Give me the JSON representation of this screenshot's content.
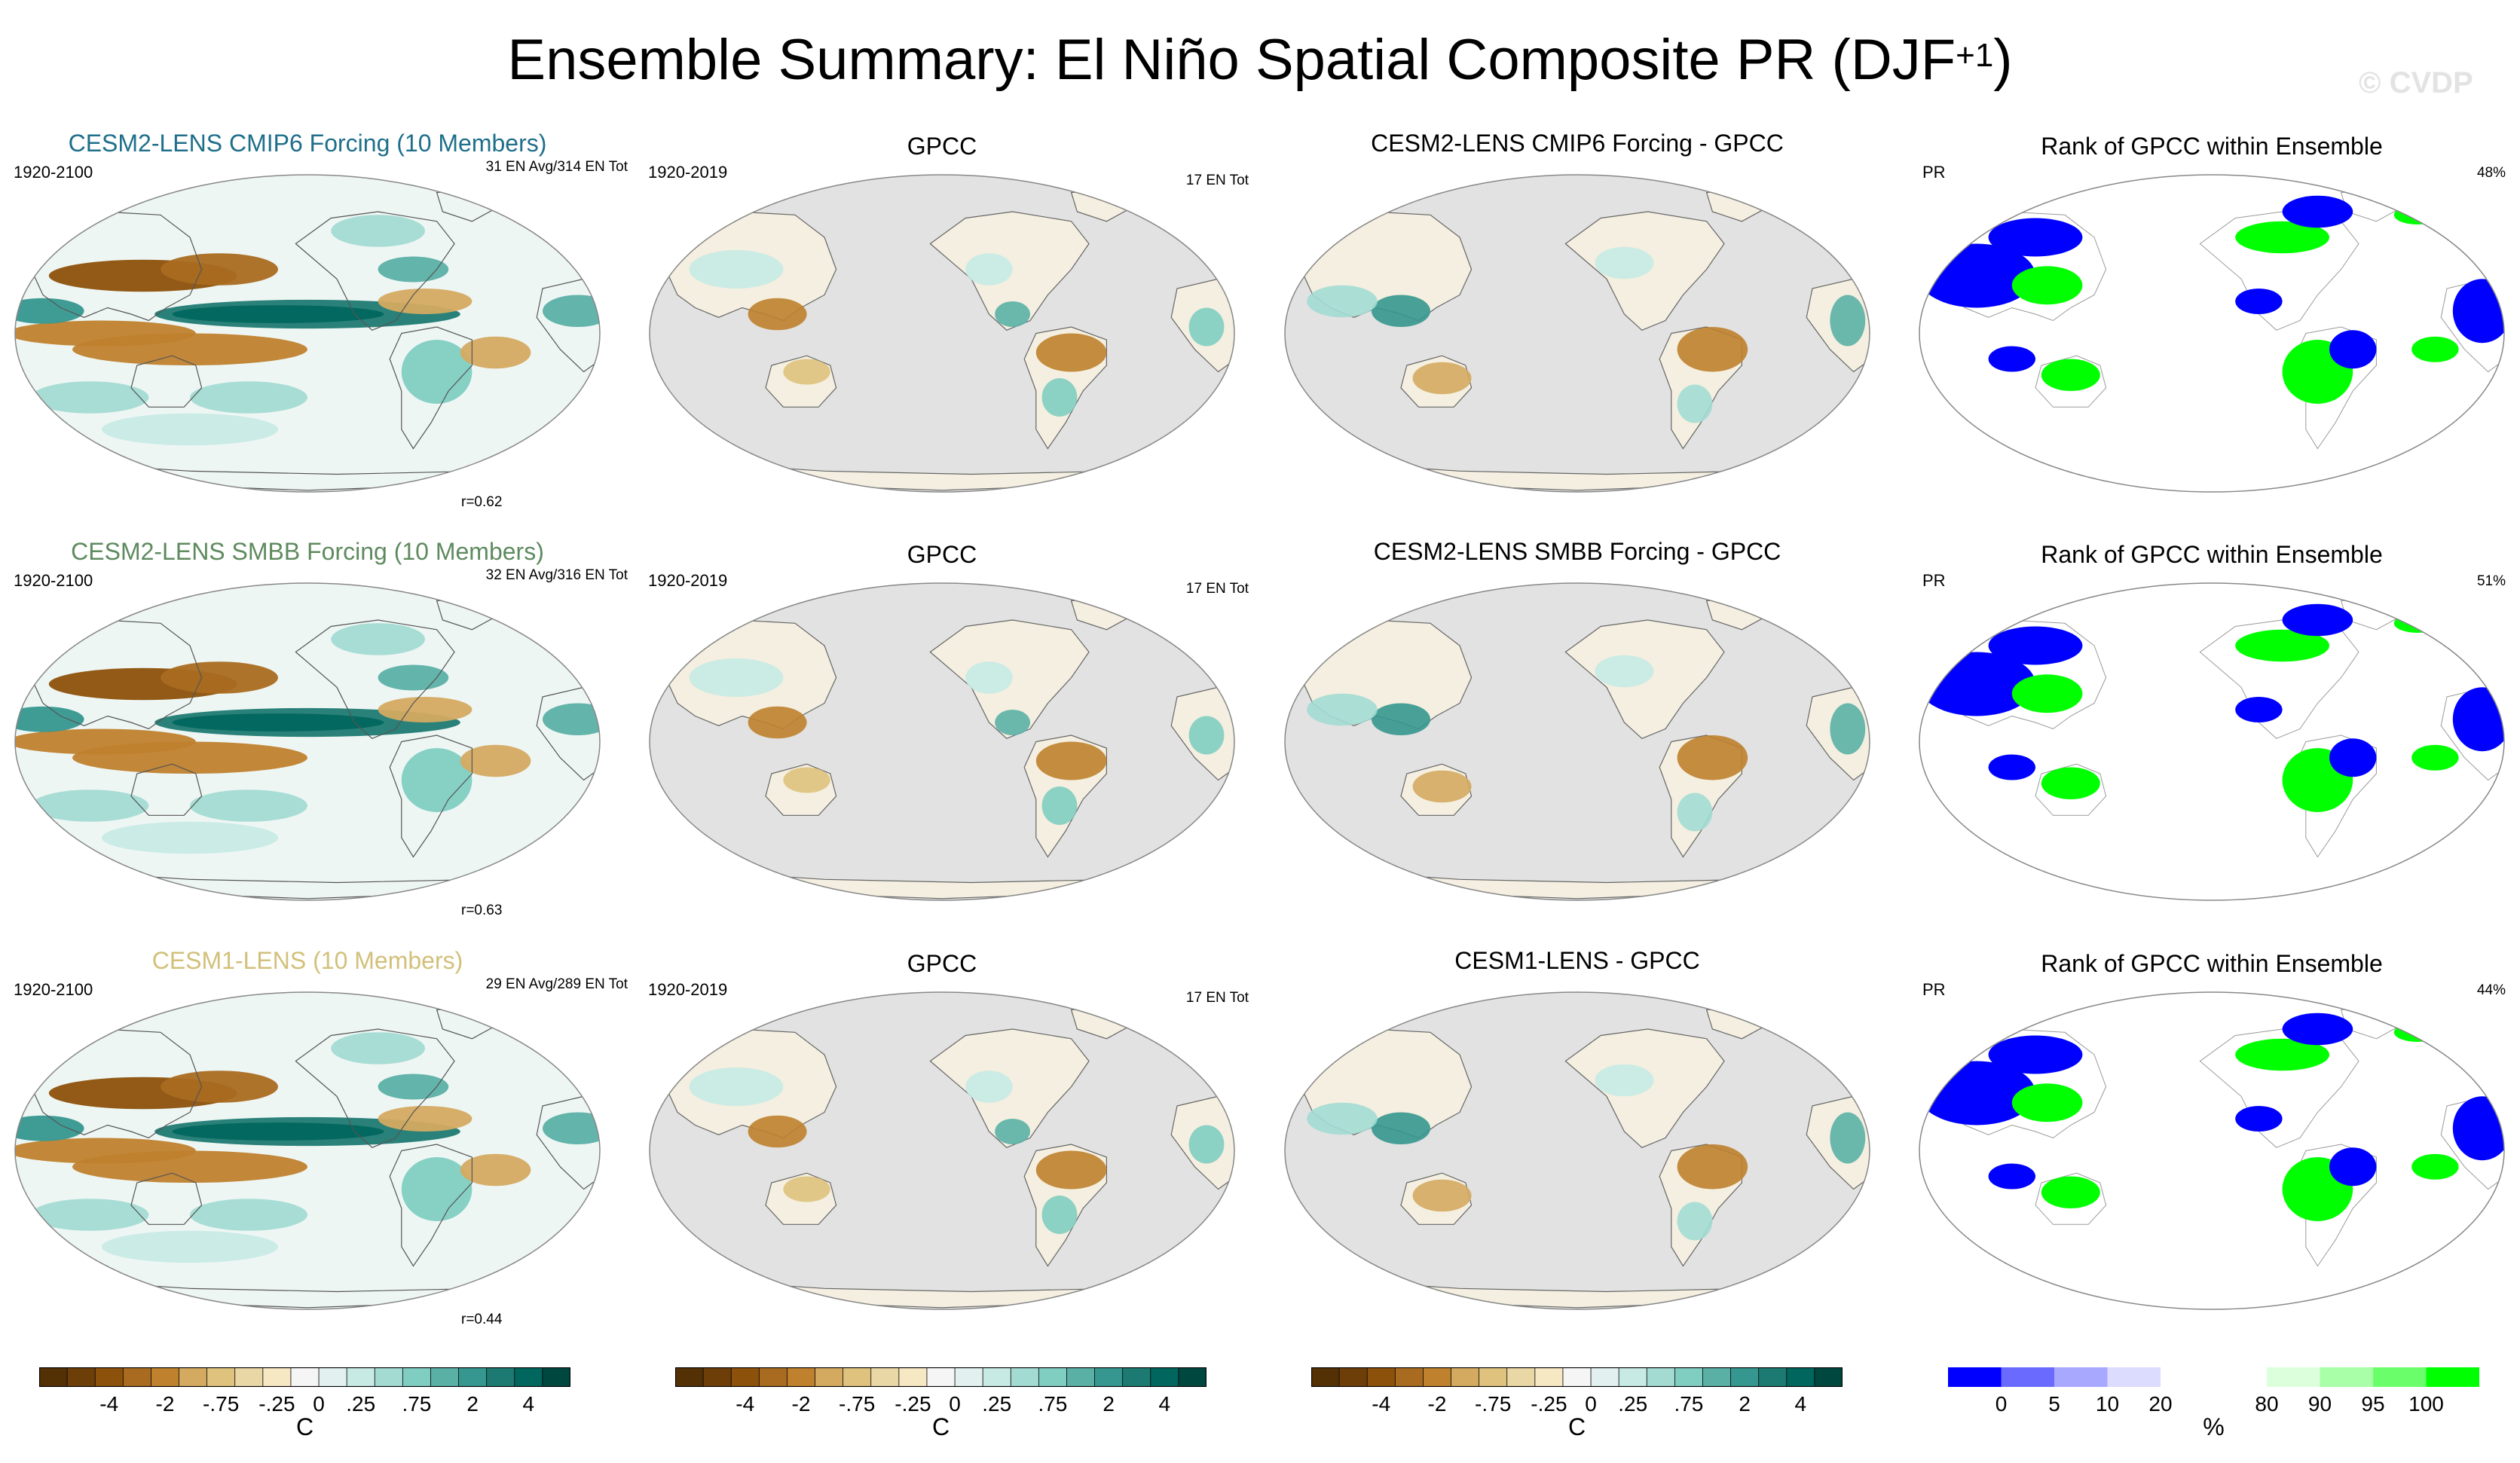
{
  "title": {
    "main": "Ensemble Summary: El Niño Spatial Composite PR (DJF",
    "superscript": "+1",
    "close": ")"
  },
  "watermark": "© CVDP",
  "colors": {
    "brown_teal": [
      "#543005",
      "#6e3e09",
      "#8c510a",
      "#a96b20",
      "#bf812d",
      "#d4aa61",
      "#dfc27d",
      "#ead7a6",
      "#f6e8c3",
      "#f5f5f5",
      "#e2f1ef",
      "#c7eae5",
      "#a3dbd3",
      "#80cdc1",
      "#5bb0a6",
      "#35978f",
      "#1d7a72",
      "#01665e",
      "#00473f"
    ],
    "rank": [
      "#0000ff",
      "#6a6aff",
      "#a8a8ff",
      "#dcdcff",
      "#ffffff",
      "#ffffff",
      "#dcffdc",
      "#a8ffa8",
      "#6aff6a",
      "#00ff00"
    ],
    "land_gray": "#e2e2e2"
  },
  "rows": [
    {
      "model_title": "CESM2-LENS CMIP6 Forcing (10 Members)",
      "model_title_color": "#1f6f8b",
      "model_years": "1920-2100",
      "model_counts": "31 EN Avg/314 EN Tot",
      "model_r": "r=0.62",
      "obs_title": "GPCC",
      "obs_years": "1920-2019",
      "obs_counts": "17 EN Tot",
      "diff_title": "CESM2-LENS CMIP6 Forcing - GPCC",
      "rank_title": "Rank of GPCC within Ensemble",
      "rank_var": "PR",
      "rank_pct": "48%"
    },
    {
      "model_title": "CESM2-LENS SMBB Forcing (10 Members)",
      "model_title_color": "#5e8a5e",
      "model_years": "1920-2100",
      "model_counts": "32 EN Avg/316 EN Tot",
      "model_r": "r=0.63",
      "obs_title": "GPCC",
      "obs_years": "1920-2019",
      "obs_counts": "17 EN Tot",
      "diff_title": "CESM2-LENS SMBB Forcing - GPCC",
      "rank_title": "Rank of GPCC within Ensemble",
      "rank_var": "PR",
      "rank_pct": "51%"
    },
    {
      "model_title": "CESM1-LENS (10 Members)",
      "model_title_color": "#d2c07a",
      "model_years": "1920-2100",
      "model_counts": "29 EN Avg/289 EN Tot",
      "model_r": "r=0.44",
      "obs_title": "GPCC",
      "obs_years": "1920-2019",
      "obs_counts": "17 EN Tot",
      "diff_title": "CESM1-LENS - GPCC",
      "rank_title": "Rank of GPCC within Ensemble",
      "rank_var": "PR",
      "rank_pct": "44%"
    }
  ],
  "colorbars": {
    "anomaly": {
      "ticks": [
        "-4",
        "-2",
        "-.75",
        "-.25",
        "0",
        ".25",
        ".75",
        "2",
        "4"
      ],
      "units": "C"
    },
    "rank": {
      "ticks": [
        "0",
        "5",
        "10",
        "20",
        "80",
        "90",
        "95",
        "100"
      ],
      "units": "%"
    }
  }
}
